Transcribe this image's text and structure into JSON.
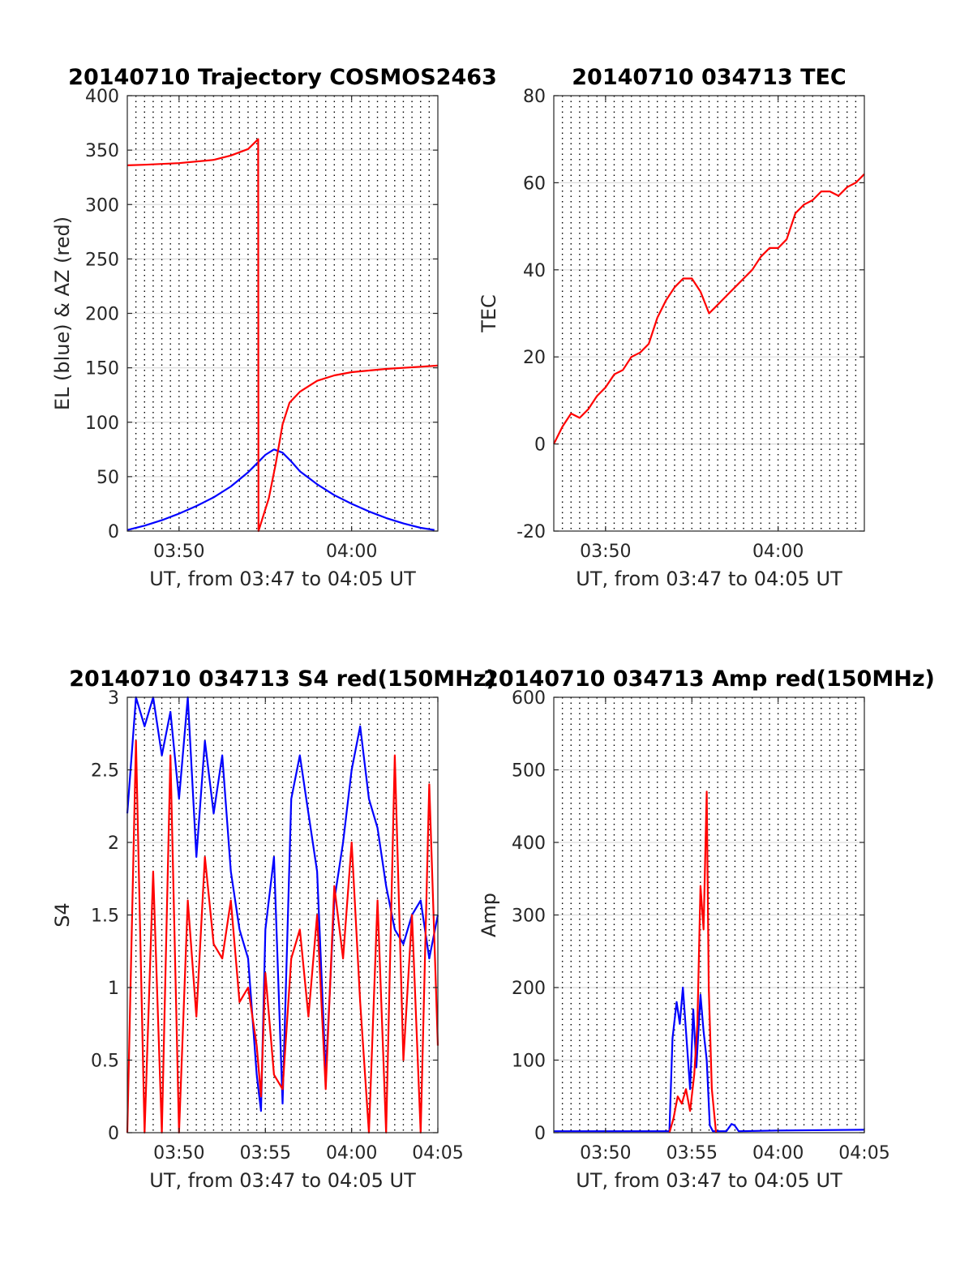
{
  "chart_data": [
    {
      "type": "line",
      "title": "20140710 Trajectory COSMOS2463",
      "xlabel": "UT, from 03:47 to 04:05 UT",
      "ylabel": "EL (blue) & AZ (red)",
      "xlim": [
        3.7833,
        4.0833
      ],
      "ylim": [
        0,
        400
      ],
      "yticks": [
        0,
        50,
        100,
        150,
        200,
        250,
        300,
        350,
        400
      ],
      "xticks": [
        {
          "value": 3.8333,
          "label": "03:50"
        },
        {
          "value": 4.0,
          "label": "04:00"
        }
      ],
      "grid": "vertical dotted every 30 s; horizontal grid at y ticks",
      "series": [
        {
          "color": "#0000ff",
          "x": [
            3.7833,
            3.8,
            3.8167,
            3.8333,
            3.85,
            3.8667,
            3.8833,
            3.9,
            3.9083,
            3.9167,
            3.925,
            3.9333,
            3.9417,
            3.95,
            3.9667,
            3.9833,
            4.0,
            4.0167,
            4.0333,
            4.05,
            4.0667,
            4.08
          ],
          "y": [
            1,
            5,
            10,
            16,
            23,
            31,
            41,
            54,
            62,
            70,
            75,
            72,
            64,
            55,
            43,
            33,
            25,
            18,
            12,
            7,
            3,
            1
          ]
        },
        {
          "color": "#ff0000",
          "x": [
            3.7833,
            3.8,
            3.8333,
            3.8667,
            3.8833,
            3.9,
            3.9097,
            3.91,
            3.9133,
            3.92,
            3.9267,
            3.9333,
            3.94,
            3.95,
            3.9667,
            3.9833,
            4.0,
            4.0333,
            4.0667,
            4.0833
          ],
          "y": [
            336,
            336.5,
            338,
            341,
            345,
            351,
            360,
            0,
            10,
            30,
            62,
            98,
            118,
            128,
            138,
            143,
            146,
            149,
            151,
            152
          ]
        }
      ]
    },
    {
      "type": "line",
      "title": "20140710 034713 TEC",
      "xlabel": "UT, from 03:47 to 04:05 UT",
      "ylabel": "TEC",
      "xlim": [
        3.7833,
        4.0833
      ],
      "ylim": [
        -20,
        80
      ],
      "yticks": [
        -20,
        0,
        20,
        40,
        60,
        80
      ],
      "xticks": [
        {
          "value": 3.8333,
          "label": "03:50"
        },
        {
          "value": 4.0,
          "label": "04:00"
        }
      ],
      "series": [
        {
          "color": "#ff0000",
          "x": [
            3.7833,
            3.7917,
            3.8,
            3.8083,
            3.8167,
            3.825,
            3.8333,
            3.8417,
            3.85,
            3.8583,
            3.8667,
            3.875,
            3.8833,
            3.8917,
            3.9,
            3.9083,
            3.9167,
            3.925,
            3.9333,
            3.9417,
            3.95,
            3.9583,
            3.9667,
            3.975,
            3.9833,
            3.9917,
            4.0,
            4.0083,
            4.0167,
            4.025,
            4.0333,
            4.0417,
            4.05,
            4.0583,
            4.0667,
            4.075,
            4.0833
          ],
          "y": [
            0,
            4,
            7,
            6,
            8,
            11,
            13,
            16,
            17,
            20,
            21,
            23,
            29,
            33,
            36,
            38,
            38,
            35,
            30,
            32,
            34,
            36,
            38,
            40,
            43,
            45,
            45,
            47,
            53,
            55,
            56,
            58,
            58,
            57,
            59,
            60,
            62
          ]
        }
      ]
    },
    {
      "type": "line",
      "title": "20140710 034713 S4 red(150MHz)",
      "xlabel": "UT, from 03:47 to 04:05 UT",
      "ylabel": "S4",
      "xlim": [
        3.7833,
        4.0833
      ],
      "ylim": [
        0,
        3
      ],
      "yticks": [
        0,
        0.5,
        1,
        1.5,
        2,
        2.5,
        3
      ],
      "xticks": [
        {
          "value": 3.8333,
          "label": "03:50"
        },
        {
          "value": 3.9167,
          "label": "03:55"
        },
        {
          "value": 4.0,
          "label": "04:00"
        },
        {
          "value": 4.0833,
          "label": "04:05"
        }
      ],
      "series": [
        {
          "color": "#0000ff",
          "x": [
            3.7833,
            3.7917,
            3.8,
            3.8083,
            3.8167,
            3.825,
            3.8333,
            3.8417,
            3.85,
            3.8583,
            3.8667,
            3.875,
            3.8833,
            3.8917,
            3.9,
            3.9083,
            3.9125,
            3.9167,
            3.925,
            3.9333,
            3.9417,
            3.95,
            3.9583,
            3.9667,
            3.975,
            3.9833,
            3.9917,
            4.0,
            4.0083,
            4.0167,
            4.025,
            4.0333,
            4.0417,
            4.05,
            4.0583,
            4.0667,
            4.075,
            4.0833
          ],
          "y": [
            2.2,
            3,
            2.8,
            3,
            2.6,
            2.9,
            2.3,
            3,
            1.9,
            2.7,
            2.2,
            2.6,
            1.8,
            1.4,
            1.2,
            0.4,
            0.15,
            1.4,
            1.9,
            0.2,
            2.3,
            2.6,
            2.2,
            1.8,
            0.4,
            1.6,
            2.0,
            2.5,
            2.8,
            2.3,
            2.1,
            1.7,
            1.4,
            1.3,
            1.5,
            1.6,
            1.2,
            1.5
          ]
        },
        {
          "color": "#ff0000",
          "x": [
            3.7833,
            3.7917,
            3.8,
            3.8083,
            3.8167,
            3.825,
            3.8333,
            3.8417,
            3.85,
            3.8583,
            3.8667,
            3.875,
            3.8833,
            3.8917,
            3.9,
            3.9083,
            3.9125,
            3.9167,
            3.925,
            3.9333,
            3.9417,
            3.95,
            3.9583,
            3.9667,
            3.975,
            3.9833,
            3.9917,
            4.0,
            4.0083,
            4.0167,
            4.025,
            4.0333,
            4.0417,
            4.05,
            4.0583,
            4.0667,
            4.075,
            4.0833
          ],
          "y": [
            0,
            2.7,
            0,
            1.8,
            0,
            2.6,
            0,
            1.6,
            0.8,
            1.9,
            1.3,
            1.2,
            1.6,
            0.9,
            1.0,
            0.6,
            0.25,
            1.1,
            0.4,
            0.3,
            1.2,
            1.4,
            0.8,
            1.5,
            0.3,
            1.7,
            1.2,
            2.0,
            0.9,
            0,
            1.6,
            0,
            2.6,
            0.5,
            1.5,
            0,
            2.4,
            0.6
          ]
        }
      ]
    },
    {
      "type": "line",
      "title": "20140710 034713 Amp red(150MHz)",
      "xlabel": "UT, from 03:47 to 04:05 UT",
      "ylabel": "Amp",
      "xlim": [
        3.7833,
        4.0833
      ],
      "ylim": [
        0,
        600
      ],
      "yticks": [
        0,
        100,
        200,
        300,
        400,
        500,
        600
      ],
      "xticks": [
        {
          "value": 3.8333,
          "label": "03:50"
        },
        {
          "value": 3.9167,
          "label": "03:55"
        },
        {
          "value": 4.0,
          "label": "04:00"
        },
        {
          "value": 4.0833,
          "label": "04:05"
        }
      ],
      "series": [
        {
          "color": "#0000ff",
          "x": [
            3.7833,
            3.85,
            3.895,
            3.898,
            3.902,
            3.905,
            3.908,
            3.912,
            3.915,
            3.918,
            3.921,
            3.925,
            3.928,
            3.931,
            3.934,
            3.937,
            3.95,
            3.955,
            3.958,
            3.962,
            4.0,
            4.0833
          ],
          "y": [
            2,
            2,
            2,
            130,
            180,
            150,
            200,
            120,
            60,
            170,
            90,
            190,
            140,
            100,
            10,
            2,
            2,
            12,
            10,
            2,
            3,
            4
          ]
        },
        {
          "color": "#ff0000",
          "x": [
            3.895,
            3.899,
            3.903,
            3.907,
            3.911,
            3.915,
            3.919,
            3.922,
            3.925,
            3.928,
            3.931,
            3.933,
            3.936,
            3.94
          ],
          "y": [
            0,
            20,
            50,
            40,
            60,
            30,
            80,
            150,
            340,
            280,
            470,
            200,
            60,
            0
          ]
        }
      ]
    }
  ]
}
